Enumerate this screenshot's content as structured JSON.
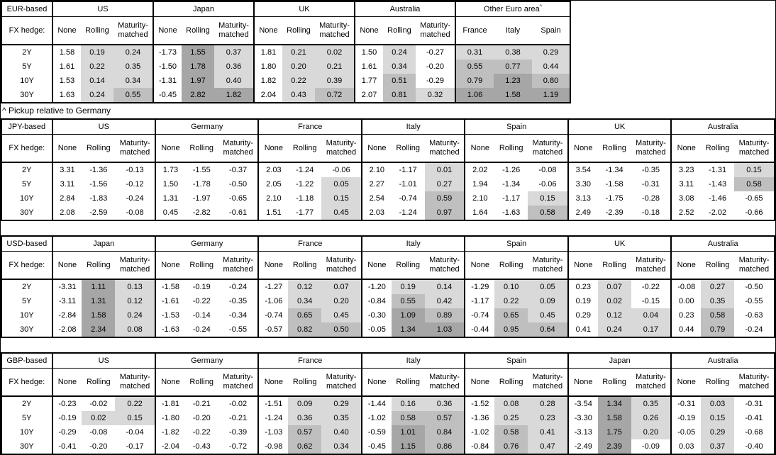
{
  "note": "^ Pickup relative to Germany",
  "fx_hedge_label": "FX hedge:",
  "maturity_labels": [
    "2Y",
    "5Y",
    "10Y",
    "30Y"
  ],
  "hedge_columns": [
    "None",
    "Rolling",
    "Maturity-matched"
  ],
  "heat_colors": {
    "none": "#ffffff",
    "light": "#d9d9d9",
    "medium": "#bfbfbf",
    "dark": "#a6a6a6"
  },
  "heat_thresholds": {
    "medium": 0.5,
    "dark": 1.0
  },
  "panels": [
    {
      "id": "eur-based",
      "title": "EUR-based",
      "groups": [
        {
          "name": "US",
          "columns": [
            "None",
            "Rolling",
            "Maturity-matched"
          ],
          "heat": [
            false,
            true,
            true
          ],
          "rows": [
            [
              "1.58",
              "0.19",
              "0.24"
            ],
            [
              "1.61",
              "0.22",
              "0.35"
            ],
            [
              "1.53",
              "0.14",
              "0.34"
            ],
            [
              "1.63",
              "0.24",
              "0.55"
            ]
          ]
        },
        {
          "name": "Japan",
          "columns": [
            "None",
            "Rolling",
            "Maturity-matched"
          ],
          "heat": [
            false,
            true,
            true
          ],
          "rows": [
            [
              "-1.73",
              "1.55",
              "0.37"
            ],
            [
              "-1.50",
              "1.78",
              "0.36"
            ],
            [
              "-1.31",
              "1.97",
              "0.40"
            ],
            [
              "-0.45",
              "2.82",
              "1.82"
            ]
          ]
        },
        {
          "name": "UK",
          "columns": [
            "None",
            "Rolling",
            "Maturity-matched"
          ],
          "heat": [
            false,
            true,
            true
          ],
          "rows": [
            [
              "1.81",
              "0.21",
              "0.02"
            ],
            [
              "1.80",
              "0.20",
              "0.21"
            ],
            [
              "1.82",
              "0.22",
              "0.39"
            ],
            [
              "2.04",
              "0.43",
              "0.72"
            ]
          ]
        },
        {
          "name": "Australia",
          "columns": [
            "None",
            "Rolling",
            "Maturity-matched"
          ],
          "heat": [
            false,
            true,
            true
          ],
          "rows": [
            [
              "1.50",
              "0.24",
              "-0.27"
            ],
            [
              "1.61",
              "0.34",
              "-0.20"
            ],
            [
              "1.77",
              "0.51",
              "-0.29"
            ],
            [
              "2.07",
              "0.81",
              "0.32"
            ]
          ]
        },
        {
          "name": "Other Euro area",
          "superscript": "^",
          "columns": [
            "France",
            "Italy",
            "Spain"
          ],
          "heat": [
            true,
            true,
            true
          ],
          "rows": [
            [
              "0.31",
              "0.38",
              "0.29"
            ],
            [
              "0.55",
              "0.77",
              "0.44"
            ],
            [
              "0.79",
              "1.23",
              "0.80"
            ],
            [
              "1.06",
              "1.58",
              "1.19"
            ]
          ]
        }
      ]
    },
    {
      "id": "jpy-based",
      "title": "JPY-based",
      "groups": [
        {
          "name": "US",
          "columns": [
            "None",
            "Rolling",
            "Maturity-matched"
          ],
          "heat": [
            false,
            true,
            true
          ],
          "rows": [
            [
              "3.31",
              "-1.36",
              "-0.13"
            ],
            [
              "3.11",
              "-1.56",
              "-0.12"
            ],
            [
              "2.84",
              "-1.83",
              "-0.24"
            ],
            [
              "2.08",
              "-2.59",
              "-0.08"
            ]
          ]
        },
        {
          "name": "Germany",
          "columns": [
            "None",
            "Rolling",
            "Maturity-matched"
          ],
          "heat": [
            false,
            true,
            true
          ],
          "rows": [
            [
              "1.73",
              "-1.55",
              "-0.37"
            ],
            [
              "1.50",
              "-1.78",
              "-0.50"
            ],
            [
              "1.31",
              "-1.97",
              "-0.65"
            ],
            [
              "0.45",
              "-2.82",
              "-0.61"
            ]
          ]
        },
        {
          "name": "France",
          "columns": [
            "None",
            "Rolling",
            "Maturity-matched"
          ],
          "heat": [
            false,
            true,
            true
          ],
          "rows": [
            [
              "2.03",
              "-1.24",
              "-0.06"
            ],
            [
              "2.05",
              "-1.22",
              "0.05"
            ],
            [
              "2.10",
              "-1.18",
              "0.15"
            ],
            [
              "1.51",
              "-1.77",
              "0.45"
            ]
          ]
        },
        {
          "name": "Italy",
          "columns": [
            "None",
            "Rolling",
            "Maturity-matched"
          ],
          "heat": [
            false,
            true,
            true
          ],
          "rows": [
            [
              "2.10",
              "-1.17",
              "0.01"
            ],
            [
              "2.27",
              "-1.01",
              "0.27"
            ],
            [
              "2.54",
              "-0.74",
              "0.59"
            ],
            [
              "2.03",
              "-1.24",
              "0.97"
            ]
          ]
        },
        {
          "name": "Spain",
          "columns": [
            "None",
            "Rolling",
            "Maturity-matched"
          ],
          "heat": [
            false,
            true,
            true
          ],
          "rows": [
            [
              "2.02",
              "-1.26",
              "-0.08"
            ],
            [
              "1.94",
              "-1.34",
              "-0.06"
            ],
            [
              "2.10",
              "-1.17",
              "0.15"
            ],
            [
              "1.64",
              "-1.63",
              "0.58"
            ]
          ]
        },
        {
          "name": "UK",
          "columns": [
            "None",
            "Rolling",
            "Maturity-matched"
          ],
          "heat": [
            false,
            true,
            true
          ],
          "rows": [
            [
              "3.54",
              "-1.34",
              "-0.35"
            ],
            [
              "3.30",
              "-1.58",
              "-0.31"
            ],
            [
              "3.13",
              "-1.75",
              "-0.28"
            ],
            [
              "2.49",
              "-2.39",
              "-0.18"
            ]
          ]
        },
        {
          "name": "Australia",
          "columns": [
            "None",
            "Rolling",
            "Maturity-matched"
          ],
          "heat": [
            false,
            true,
            true
          ],
          "rows": [
            [
              "3.23",
              "-1.31",
              "0.15"
            ],
            [
              "3.11",
              "-1.43",
              "0.58"
            ],
            [
              "3.08",
              "-1.46",
              "-0.65"
            ],
            [
              "2.52",
              "-2.02",
              "-0.66"
            ]
          ]
        }
      ]
    },
    {
      "id": "usd-based",
      "title": "USD-based",
      "groups": [
        {
          "name": "Japan",
          "columns": [
            "None",
            "Rolling",
            "Maturity-matched"
          ],
          "heat": [
            false,
            true,
            true
          ],
          "rows": [
            [
              "-3.31",
              "1.11",
              "0.13"
            ],
            [
              "-3.11",
              "1.31",
              "0.12"
            ],
            [
              "-2.84",
              "1.58",
              "0.24"
            ],
            [
              "-2.08",
              "2.34",
              "0.08"
            ]
          ]
        },
        {
          "name": "Germany",
          "columns": [
            "None",
            "Rolling",
            "Maturity-matched"
          ],
          "heat": [
            false,
            true,
            true
          ],
          "rows": [
            [
              "-1.58",
              "-0.19",
              "-0.24"
            ],
            [
              "-1.61",
              "-0.22",
              "-0.35"
            ],
            [
              "-1.53",
              "-0.14",
              "-0.34"
            ],
            [
              "-1.63",
              "-0.24",
              "-0.55"
            ]
          ]
        },
        {
          "name": "France",
          "columns": [
            "None",
            "Rolling",
            "Maturity-matched"
          ],
          "heat": [
            false,
            true,
            true
          ],
          "rows": [
            [
              "-1.27",
              "0.12",
              "0.07"
            ],
            [
              "-1.06",
              "0.34",
              "0.20"
            ],
            [
              "-0.74",
              "0.65",
              "0.45"
            ],
            [
              "-0.57",
              "0.82",
              "0.50"
            ]
          ]
        },
        {
          "name": "Italy",
          "columns": [
            "None",
            "Rolling",
            "Maturity-matched"
          ],
          "heat": [
            false,
            true,
            true
          ],
          "rows": [
            [
              "-1.20",
              "0.19",
              "0.14"
            ],
            [
              "-0.84",
              "0.55",
              "0.42"
            ],
            [
              "-0.30",
              "1.09",
              "0.89"
            ],
            [
              "-0.05",
              "1.34",
              "1.03"
            ]
          ]
        },
        {
          "name": "Spain",
          "columns": [
            "None",
            "Rolling",
            "Maturity-matched"
          ],
          "heat": [
            false,
            true,
            true
          ],
          "rows": [
            [
              "-1.29",
              "0.10",
              "0.05"
            ],
            [
              "-1.17",
              "0.22",
              "0.09"
            ],
            [
              "-0.74",
              "0.65",
              "0.45"
            ],
            [
              "-0.44",
              "0.95",
              "0.64"
            ]
          ]
        },
        {
          "name": "UK",
          "columns": [
            "None",
            "Rolling",
            "Maturity-matched"
          ],
          "heat": [
            false,
            true,
            true
          ],
          "rows": [
            [
              "0.23",
              "0.07",
              "-0.22"
            ],
            [
              "0.19",
              "0.02",
              "-0.15"
            ],
            [
              "0.29",
              "0.12",
              "0.04"
            ],
            [
              "0.41",
              "0.24",
              "0.17"
            ]
          ]
        },
        {
          "name": "Australia",
          "columns": [
            "None",
            "Rolling",
            "Maturity-matched"
          ],
          "heat": [
            false,
            true,
            true
          ],
          "rows": [
            [
              "-0.08",
              "0.27",
              "-0.50"
            ],
            [
              "0.00",
              "0.35",
              "-0.55"
            ],
            [
              "0.23",
              "0.58",
              "-0.63"
            ],
            [
              "0.44",
              "0.79",
              "-0.24"
            ]
          ]
        }
      ]
    },
    {
      "id": "gbp-based",
      "title": "GBP-based",
      "groups": [
        {
          "name": "US",
          "columns": [
            "None",
            "Rolling",
            "Maturity-matched"
          ],
          "heat": [
            false,
            true,
            true
          ],
          "rows": [
            [
              "-0.23",
              "-0.02",
              "0.22"
            ],
            [
              "-0.19",
              "0.02",
              "0.15"
            ],
            [
              "-0.29",
              "-0.08",
              "-0.04"
            ],
            [
              "-0.41",
              "-0.20",
              "-0.17"
            ]
          ]
        },
        {
          "name": "Germany",
          "columns": [
            "None",
            "Rolling",
            "Maturity-matched"
          ],
          "heat": [
            false,
            true,
            true
          ],
          "rows": [
            [
              "-1.81",
              "-0.21",
              "-0.02"
            ],
            [
              "-1.80",
              "-0.20",
              "-0.21"
            ],
            [
              "-1.82",
              "-0.22",
              "-0.39"
            ],
            [
              "-2.04",
              "-0.43",
              "-0.72"
            ]
          ]
        },
        {
          "name": "France",
          "columns": [
            "None",
            "Rolling",
            "Maturity-matched"
          ],
          "heat": [
            false,
            true,
            true
          ],
          "rows": [
            [
              "-1.51",
              "0.09",
              "0.29"
            ],
            [
              "-1.24",
              "0.36",
              "0.35"
            ],
            [
              "-1.03",
              "0.57",
              "0.40"
            ],
            [
              "-0.98",
              "0.62",
              "0.34"
            ]
          ]
        },
        {
          "name": "Italy",
          "columns": [
            "None",
            "Rolling",
            "Maturity-matched"
          ],
          "heat": [
            false,
            true,
            true
          ],
          "rows": [
            [
              "-1.44",
              "0.16",
              "0.36"
            ],
            [
              "-1.02",
              "0.58",
              "0.57"
            ],
            [
              "-0.59",
              "1.01",
              "0.84"
            ],
            [
              "-0.45",
              "1.15",
              "0.86"
            ]
          ]
        },
        {
          "name": "Spain",
          "columns": [
            "None",
            "Rolling",
            "Maturity-matched"
          ],
          "heat": [
            false,
            true,
            true
          ],
          "rows": [
            [
              "-1.52",
              "0.08",
              "0.28"
            ],
            [
              "-1.36",
              "0.25",
              "0.23"
            ],
            [
              "-1.02",
              "0.58",
              "0.41"
            ],
            [
              "-0.84",
              "0.76",
              "0.47"
            ]
          ]
        },
        {
          "name": "Japan",
          "columns": [
            "None",
            "Rolling",
            "Maturity-matched"
          ],
          "heat": [
            false,
            true,
            true
          ],
          "rows": [
            [
              "-3.54",
              "1.34",
              "0.35"
            ],
            [
              "-3.30",
              "1.58",
              "0.26"
            ],
            [
              "-3.13",
              "1.75",
              "0.20"
            ],
            [
              "-2.49",
              "2.39",
              "-0.09"
            ]
          ]
        },
        {
          "name": "Australia",
          "columns": [
            "None",
            "Rolling",
            "Maturity-matched"
          ],
          "heat": [
            false,
            true,
            true
          ],
          "rows": [
            [
              "-0.31",
              "0.03",
              "-0.31"
            ],
            [
              "-0.19",
              "0.15",
              "-0.41"
            ],
            [
              "-0.05",
              "0.29",
              "-0.68"
            ],
            [
              "0.03",
              "0.37",
              "-0.40"
            ]
          ]
        }
      ]
    }
  ]
}
